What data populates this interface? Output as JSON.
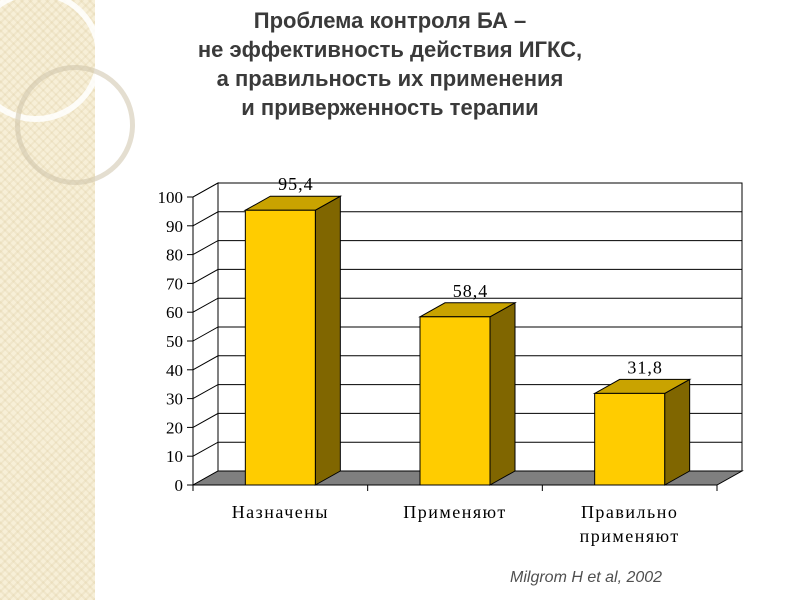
{
  "title_lines": [
    "Проблема контроля БА –",
    "не эффективность действия ИГКС,",
    "а правильность их применения",
    "и приверженность терапии"
  ],
  "citation": "Milgrom H et al,  2002",
  "colors": {
    "bar_front": "#ffcc00",
    "bar_side": "#806600",
    "bar_top": "#c9a300",
    "floor": "#7f7f7f",
    "text": "#3a3a3a"
  },
  "chart_data": {
    "type": "bar",
    "categories": [
      [
        "Назначены"
      ],
      [
        "Применяют"
      ],
      [
        "Правильно",
        "применяют"
      ]
    ],
    "values": [
      95.4,
      58.4,
      31.8
    ],
    "data_labels": [
      "95,4",
      "58,4",
      "31,8"
    ],
    "yticks": [
      "0",
      "10",
      "20",
      "30",
      "40",
      "50",
      "60",
      "70",
      "80",
      "90",
      "100"
    ],
    "ylim": [
      0,
      100
    ],
    "grid": true,
    "legend": "none"
  }
}
